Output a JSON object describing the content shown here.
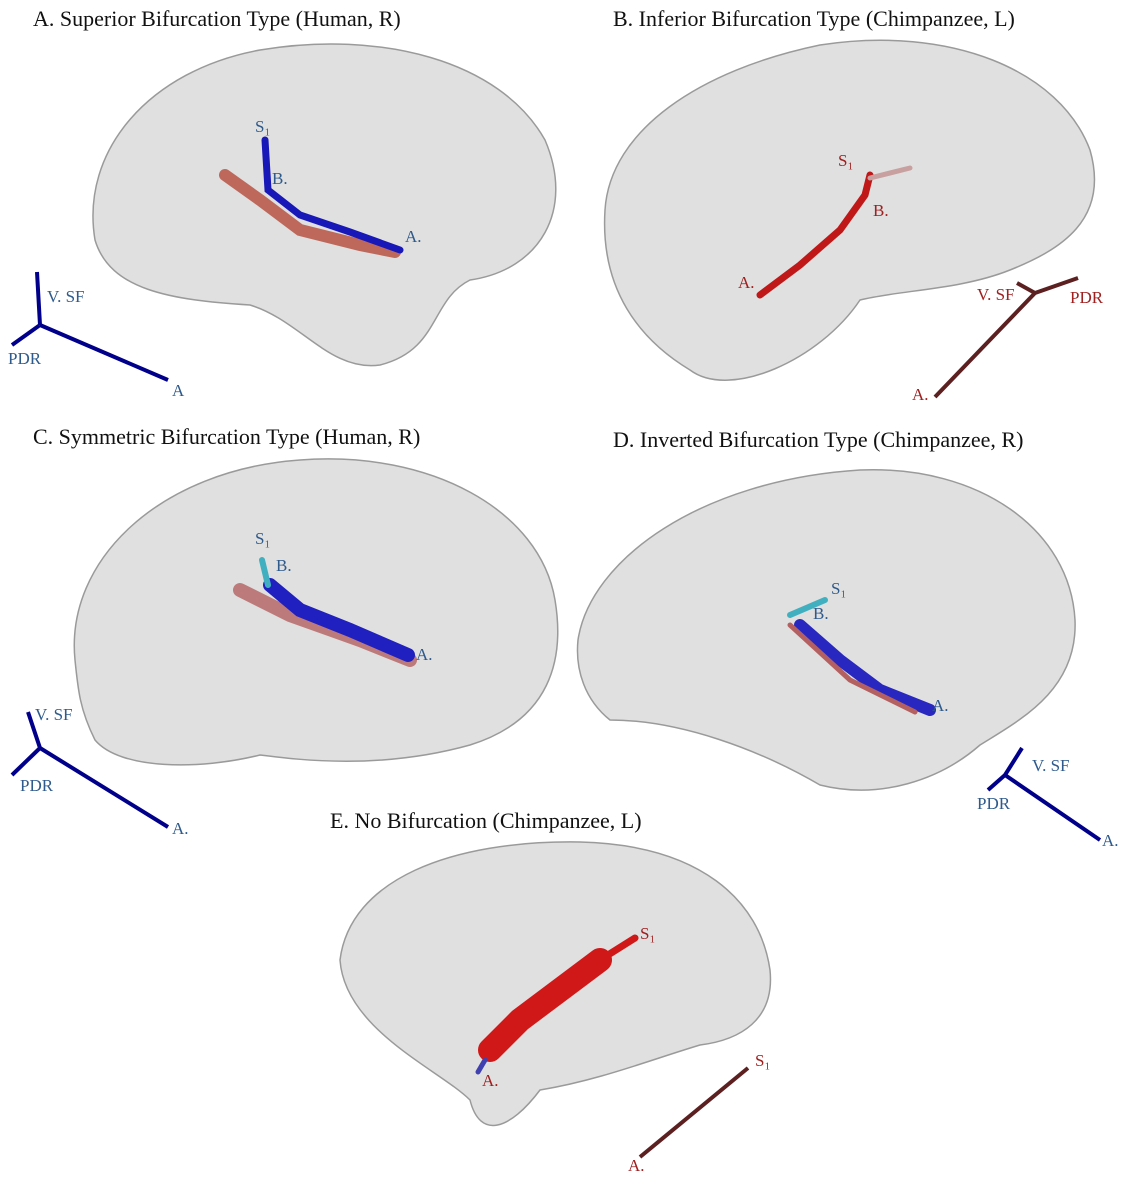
{
  "panels": [
    {
      "title": "A. Superior  Bifurcation Type (Human, R)",
      "brain_labels": [
        "S₁",
        "B.",
        "A."
      ],
      "orientation_labels": [
        "V. SF",
        "PDR",
        "A"
      ]
    },
    {
      "title": "B. Inferior Bifurcation Type (Chimpanzee, L)",
      "brain_labels": [
        "S₁",
        "B.",
        "A."
      ],
      "orientation_labels": [
        "V. SF",
        "PDR",
        "A."
      ]
    },
    {
      "title": "C. Symmetric Bifurcation Type (Human, R)",
      "brain_labels": [
        "S₁",
        "B.",
        "A."
      ],
      "orientation_labels": [
        "V. SF",
        "PDR",
        "A."
      ]
    },
    {
      "title": "D. Inverted Bifurcation Type (Chimpanzee, R)",
      "brain_labels": [
        "S₁",
        "B.",
        "A."
      ],
      "orientation_labels": [
        "V. SF",
        "PDR",
        "A."
      ]
    },
    {
      "title": "E. No Bifurcation (Chimpanzee, L)",
      "brain_labels": [
        "S₁",
        "A."
      ],
      "orientation_labels": [
        "S₁",
        "A."
      ]
    }
  ]
}
